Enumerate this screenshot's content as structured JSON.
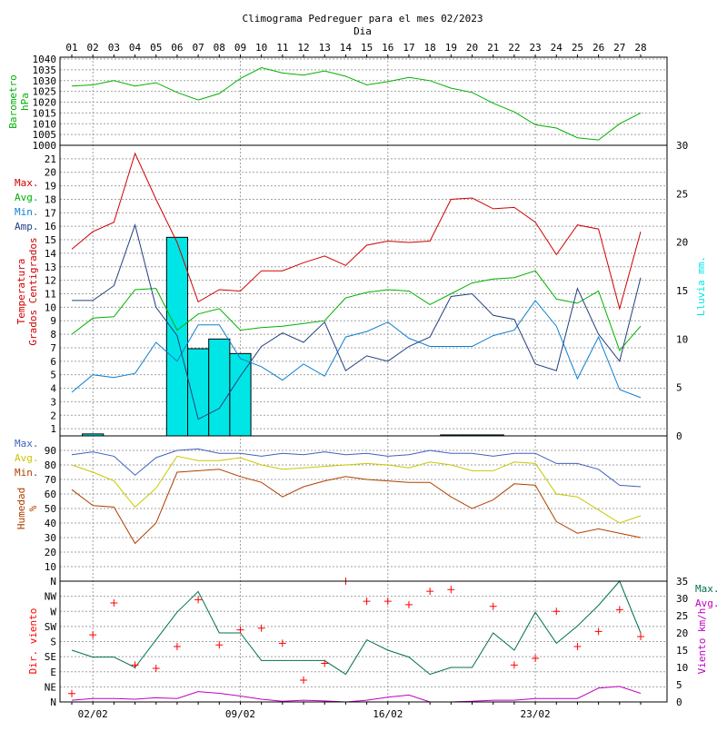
{
  "page": {
    "title": "Climograma Pedreguer para el mes 02/2023",
    "xlabel_top": "Dia"
  },
  "colors": {
    "frame": "#000000",
    "grid": "#a0a0a0",
    "barometer": "#00b000",
    "max": "#d00000",
    "avg": "#00b000",
    "min": "#1080d0",
    "amp": "#204080",
    "rain": "#00e6e6",
    "hum_max": "#4060c0",
    "hum_avg": "#c8c800",
    "hum_min": "#b04000",
    "wind_dir": "#ff0000",
    "wind_max": "#007050",
    "wind_avg": "#c000c0"
  },
  "chart_data": [
    {
      "type": "line",
      "name": "barometer",
      "ylabel": [
        "Barometro",
        "hPa"
      ],
      "y_ticks": [
        "1040",
        "1035",
        "1030",
        "1025",
        "1020",
        "1015",
        "1010",
        "1005",
        "1000"
      ],
      "ylim": [
        1000,
        1040
      ],
      "grid": true,
      "x_top_ticks": [
        "01",
        "02",
        "03",
        "04",
        "05",
        "06",
        "07",
        "08",
        "09",
        "10",
        "11",
        "12",
        "13",
        "14",
        "15",
        "16",
        "17",
        "18",
        "19",
        "20",
        "21",
        "22",
        "23",
        "24",
        "25",
        "26",
        "27",
        "28"
      ],
      "x": [
        1,
        2,
        3,
        4,
        5,
        6,
        7,
        8,
        9,
        10,
        11,
        12,
        13,
        14,
        15,
        16,
        17,
        18,
        19,
        20,
        21,
        22,
        23,
        24,
        25,
        26,
        27,
        28
      ],
      "series": [
        {
          "values": [
            1027.5,
            1028,
            1030,
            1027.5,
            1029,
            1024.5,
            1021,
            1024,
            1031,
            1036,
            1033.5,
            1032.5,
            1034.5,
            1032,
            1028,
            1029.5,
            1031.5,
            1030,
            1026.5,
            1024.5,
            1019.5,
            1015.5,
            1009.5,
            1008,
            1003.5,
            1002.5,
            1010,
            1015
          ]
        }
      ]
    },
    {
      "type": "line+bar",
      "name": "temperature",
      "ylabel": [
        "Temperatura",
        "Grados Centigrados"
      ],
      "y2label": "Lluvia mm.",
      "legend": [
        "Max.",
        "Avg.",
        "Min.",
        "Amp."
      ],
      "y_ticks": [
        "21",
        "20",
        "19",
        "18",
        "17",
        "16",
        "15",
        "14",
        "13",
        "12",
        "11",
        "10",
        "9",
        "8",
        "7",
        "6",
        "5",
        "4",
        "3",
        "2",
        "1"
      ],
      "ylim": [
        0,
        22
      ],
      "y2_ticks": [
        "30",
        "25",
        "20",
        "15",
        "10",
        "5",
        "0"
      ],
      "y2lim": [
        0,
        30
      ],
      "grid": true,
      "x": [
        1,
        2,
        3,
        4,
        5,
        6,
        7,
        8,
        9,
        10,
        11,
        12,
        13,
        14,
        15,
        16,
        17,
        18,
        19,
        20,
        21,
        22,
        23,
        24,
        25,
        26,
        27,
        28
      ],
      "series": [
        {
          "name": "Max.",
          "values": [
            14.3,
            15.6,
            16.3,
            21.4,
            18.0,
            14.8,
            10.4,
            11.3,
            11.2,
            12.7,
            12.7,
            13.3,
            13.8,
            13.1,
            14.6,
            14.9,
            14.8,
            14.9,
            18.0,
            18.1,
            17.3,
            17.4,
            16.3,
            13.9,
            16.1,
            15.8,
            9.9,
            15.6
          ]
        },
        {
          "name": "Avg.",
          "values": [
            8.0,
            9.2,
            9.3,
            11.3,
            11.4,
            8.3,
            9.5,
            9.9,
            8.3,
            8.5,
            8.6,
            8.8,
            9.0,
            10.7,
            11.1,
            11.3,
            11.2,
            10.2,
            11.0,
            11.8,
            12.1,
            12.2,
            12.7,
            10.6,
            10.3,
            11.2,
            6.8,
            8.6
          ]
        },
        {
          "name": "Min.",
          "values": [
            3.7,
            5.0,
            4.8,
            5.1,
            7.4,
            6.0,
            8.7,
            8.7,
            6.2,
            5.6,
            4.6,
            5.8,
            4.9,
            7.8,
            8.2,
            8.9,
            7.7,
            7.1,
            7.1,
            7.1,
            7.9,
            8.3,
            10.5,
            8.6,
            4.7,
            7.8,
            3.9,
            3.3
          ]
        },
        {
          "name": "Amp.",
          "values": [
            10.5,
            10.5,
            11.6,
            16.1,
            10.0,
            7.9,
            1.7,
            2.5,
            4.9,
            7.1,
            8.1,
            7.4,
            8.9,
            5.3,
            6.4,
            6.0,
            7.1,
            7.8,
            10.8,
            11.0,
            9.4,
            9.1,
            5.8,
            5.3,
            11.4,
            8.0,
            6.0,
            12.2
          ]
        }
      ],
      "rain_mm": [
        0,
        0.2,
        0,
        0,
        0,
        20.5,
        9.0,
        10.0,
        8.5,
        0,
        0,
        0,
        0,
        0,
        0,
        0,
        0,
        0,
        0.1,
        0.1,
        0.1,
        0,
        0,
        0,
        0,
        0,
        0,
        0
      ]
    },
    {
      "type": "line",
      "name": "humidity",
      "ylabel": [
        "Humedad",
        "%"
      ],
      "legend": [
        "Max.",
        "Avg.",
        "Min."
      ],
      "y_ticks": [
        "90",
        "80",
        "70",
        "60",
        "50",
        "40",
        "30",
        "20",
        "10"
      ],
      "ylim": [
        0,
        100
      ],
      "grid": true,
      "x": [
        1,
        2,
        3,
        4,
        5,
        6,
        7,
        8,
        9,
        10,
        11,
        12,
        13,
        14,
        15,
        16,
        17,
        18,
        19,
        20,
        21,
        22,
        23,
        24,
        25,
        26,
        27,
        28
      ],
      "series": [
        {
          "name": "Max.",
          "values": [
            87,
            89,
            86,
            73,
            85,
            90,
            91,
            88,
            88,
            86,
            88,
            87,
            89,
            87,
            88,
            86,
            87,
            90,
            88,
            88,
            86,
            88,
            88,
            81,
            81,
            77,
            66,
            65
          ]
        },
        {
          "name": "Avg.",
          "values": [
            80,
            75,
            69,
            51,
            64,
            86,
            83,
            83,
            85,
            80,
            77,
            78,
            79,
            80,
            81,
            80,
            78,
            82,
            80,
            76,
            76,
            82,
            81,
            60,
            58,
            49,
            40,
            45
          ]
        },
        {
          "name": "Min.",
          "values": [
            63,
            52,
            51,
            26,
            40,
            75,
            76,
            77,
            72,
            68,
            58,
            65,
            69,
            72,
            70,
            69,
            68,
            68,
            58,
            50,
            56,
            67,
            66,
            41,
            33,
            36,
            33,
            30
          ]
        }
      ]
    },
    {
      "type": "scatter+line",
      "name": "wind",
      "ylabel": "Dir. viento",
      "y2label": "Viento km/h",
      "legend": [
        "Max.",
        "Avg."
      ],
      "y_ticks": [
        "N",
        "NW",
        "W",
        "SW",
        "S",
        "SE",
        "E",
        "NE",
        "N"
      ],
      "ylim": [
        0,
        360
      ],
      "y2_ticks": [
        "35",
        "30",
        "25",
        "20",
        "15",
        "10",
        "5",
        "0"
      ],
      "y2lim": [
        0,
        35
      ],
      "grid": true,
      "x_ticks": [
        "02/02",
        "09/02",
        "16/02",
        "23/02"
      ],
      "x_tick_days": [
        2,
        9,
        16,
        23
      ],
      "x": [
        1,
        2,
        3,
        4,
        5,
        6,
        7,
        8,
        9,
        10,
        11,
        12,
        13,
        14,
        15,
        16,
        17,
        18,
        19,
        20,
        21,
        22,
        23,
        24,
        25,
        26,
        27,
        28
      ],
      "direction_deg": [
        25,
        200,
        295,
        110,
        100,
        165,
        305,
        170,
        215,
        220,
        175,
        65,
        115,
        360,
        300,
        300,
        290,
        330,
        335,
        null,
        285,
        110,
        130,
        270,
        165,
        210,
        275,
        195
      ],
      "series": [
        {
          "name": "Max.",
          "values": [
            15,
            13,
            13,
            10,
            18,
            26,
            32,
            20,
            20,
            12,
            12,
            12,
            12,
            8,
            18,
            15,
            13,
            8,
            10,
            10,
            20,
            15,
            26,
            17,
            22,
            28,
            35,
            20
          ]
        },
        {
          "name": "Avg.",
          "values": [
            0.5,
            1,
            1,
            0.8,
            1.2,
            1,
            3,
            2.5,
            1.7,
            0.8,
            0.2,
            0.5,
            0.3,
            0,
            0.5,
            1.4,
            2,
            0,
            0,
            0.2,
            0.5,
            0.5,
            1,
            1,
            1,
            4,
            4.5,
            2.5
          ]
        }
      ]
    }
  ]
}
